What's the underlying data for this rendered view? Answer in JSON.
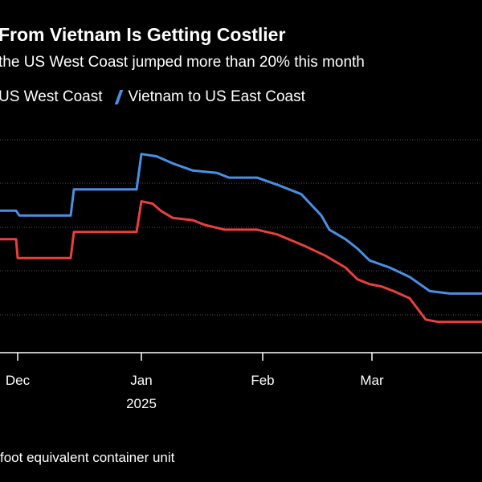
{
  "chart_data": {
    "type": "line",
    "title": "From Vietnam Is Getting Costlier",
    "subtitle": "the US West Coast jumped more than 20% this month",
    "footnote": "foot equivalent container unit",
    "xlabel": "",
    "ylabel": "",
    "x_ticks": [
      {
        "label": "Dec",
        "sublabel": ""
      },
      {
        "label": "Jan",
        "sublabel": "2025"
      },
      {
        "label": "Feb",
        "sublabel": ""
      },
      {
        "label": "Mar",
        "sublabel": ""
      }
    ],
    "grid": true,
    "legend_position": "top-left",
    "series": [
      {
        "name": "US West Coast",
        "color": "#e8403f",
        "points": [
          [
            0,
            4.8
          ],
          [
            20,
            4.8
          ],
          [
            22,
            4.0
          ],
          [
            88,
            4.0
          ],
          [
            92,
            5.1
          ],
          [
            170,
            5.1
          ],
          [
            176,
            6.4
          ],
          [
            190,
            6.3
          ],
          [
            200,
            6.0
          ],
          [
            215,
            5.7
          ],
          [
            240,
            5.6
          ],
          [
            255,
            5.4
          ],
          [
            280,
            5.2
          ],
          [
            320,
            5.2
          ],
          [
            345,
            5.0
          ],
          [
            380,
            4.5
          ],
          [
            405,
            4.1
          ],
          [
            430,
            3.6
          ],
          [
            445,
            3.1
          ],
          [
            460,
            2.9
          ],
          [
            475,
            2.8
          ],
          [
            490,
            2.6
          ],
          [
            510,
            2.3
          ],
          [
            530,
            1.4
          ],
          [
            545,
            1.3
          ],
          [
            600,
            1.3
          ]
        ]
      },
      {
        "name": "Vietnam to US East Coast",
        "color": "#4a90e2",
        "points": [
          [
            0,
            6.0
          ],
          [
            20,
            6.0
          ],
          [
            24,
            5.8
          ],
          [
            88,
            5.8
          ],
          [
            92,
            6.9
          ],
          [
            170,
            6.9
          ],
          [
            176,
            8.4
          ],
          [
            195,
            8.3
          ],
          [
            215,
            8.0
          ],
          [
            240,
            7.7
          ],
          [
            270,
            7.6
          ],
          [
            285,
            7.4
          ],
          [
            320,
            7.4
          ],
          [
            345,
            7.1
          ],
          [
            375,
            6.7
          ],
          [
            400,
            5.8
          ],
          [
            410,
            5.2
          ],
          [
            430,
            4.8
          ],
          [
            445,
            4.4
          ],
          [
            460,
            3.9
          ],
          [
            485,
            3.6
          ],
          [
            510,
            3.2
          ],
          [
            535,
            2.6
          ],
          [
            560,
            2.5
          ],
          [
            600,
            2.5
          ]
        ]
      }
    ]
  }
}
